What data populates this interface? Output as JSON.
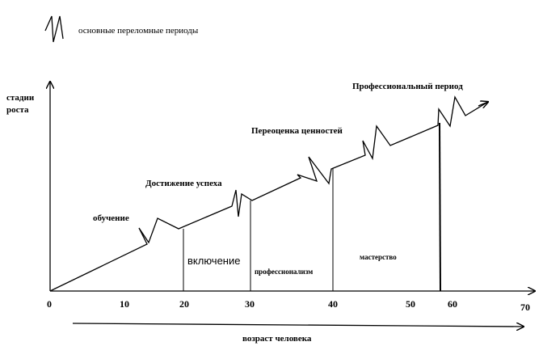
{
  "legend": {
    "icon": "zigzag-icon",
    "label": "основные переломные периоды"
  },
  "y_axis_label": {
    "line1": "стадии",
    "line2": "роста"
  },
  "x_axis_title": "возраст человека",
  "x_ticks": [
    "0",
    "10",
    "20",
    "30",
    "40",
    "50",
    "60",
    "70"
  ],
  "milestones": {
    "obuchenie": "обучение",
    "dostizhenie": "Достижение успеха",
    "pereocenka": "Переоценка ценностей",
    "professionalny": "Профессиональный период"
  },
  "phases": {
    "vklyuchenie": "включение",
    "professionalizm": "профессионализм",
    "masterstvo": "мастерство"
  },
  "colors": {
    "line": "#000000",
    "background": "#ffffff"
  }
}
